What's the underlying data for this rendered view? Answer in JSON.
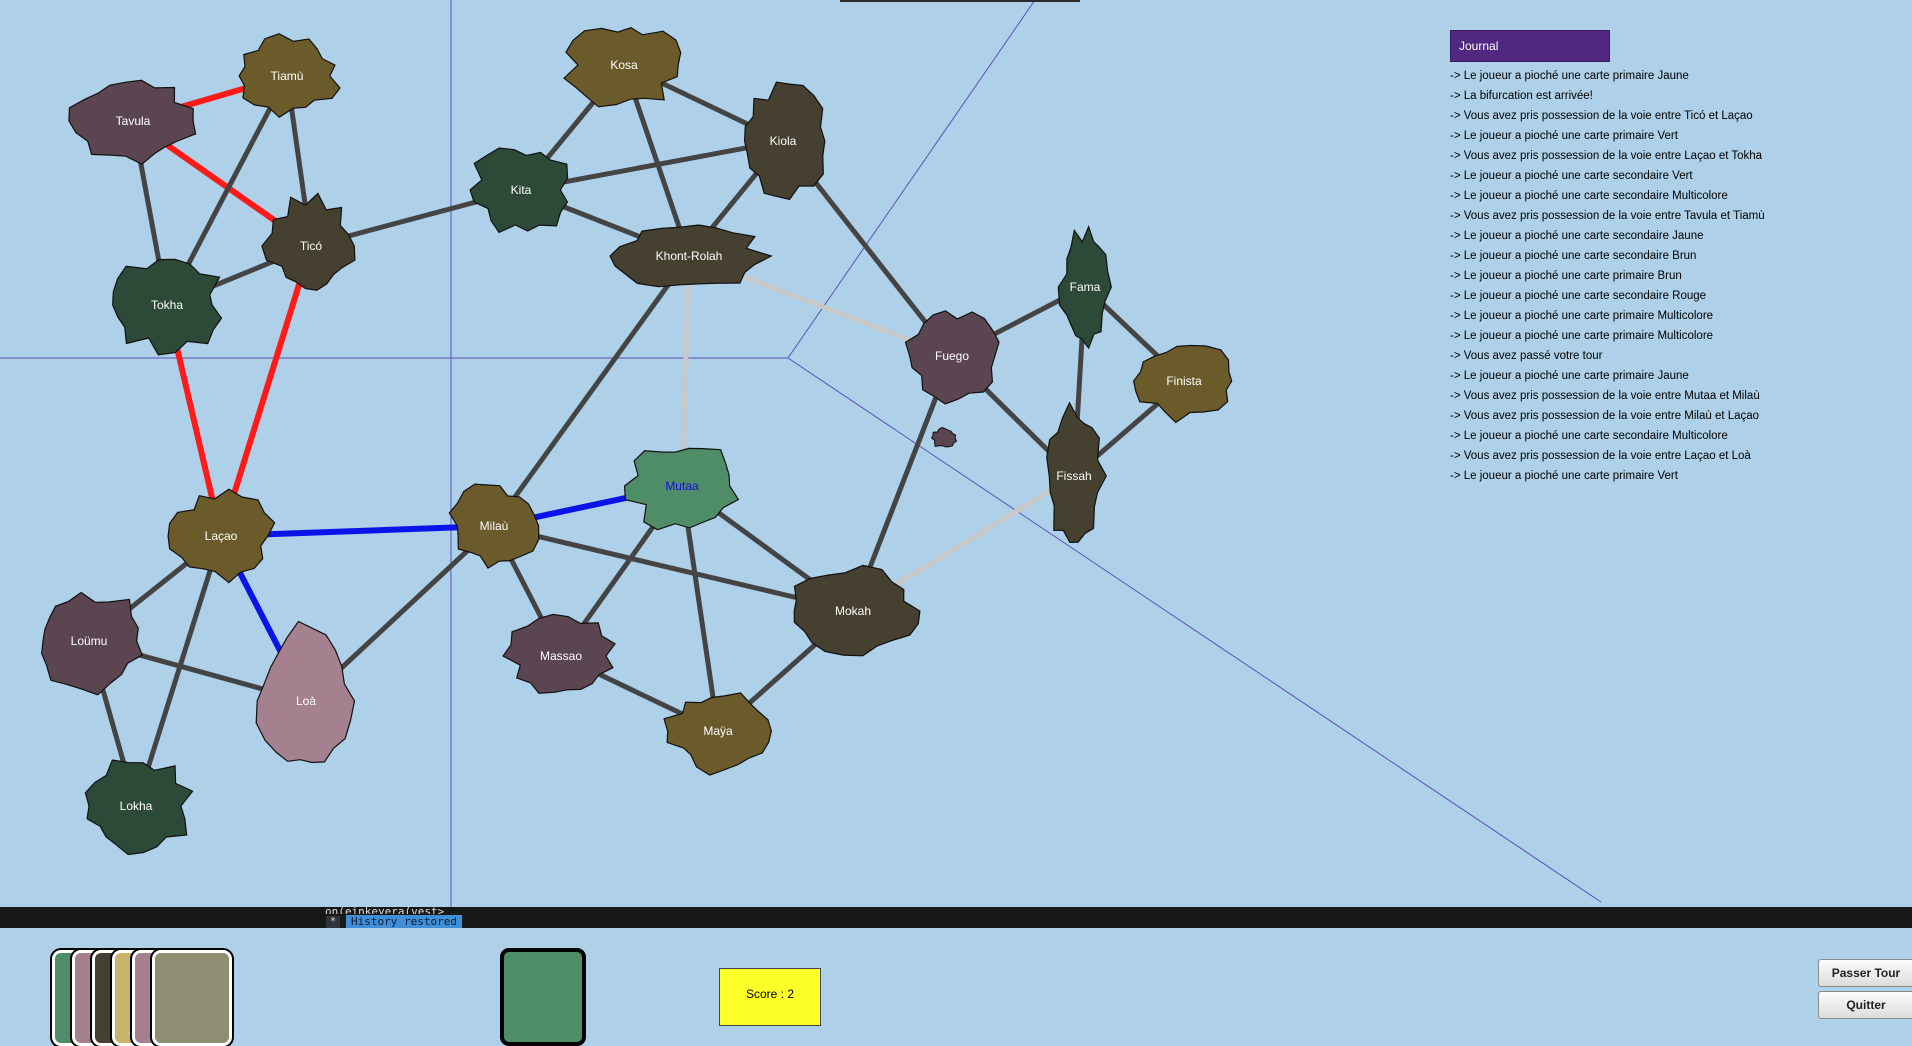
{
  "colors": {
    "sea": "#aed0e8",
    "red_route": "#ff1a1a",
    "blue_route": "#0a14e8",
    "neutral_route": "#444444",
    "grey_route": "#c8c8c8",
    "journal_header": "#51287f",
    "score_bg": "#ffff2a"
  },
  "cities": [
    {
      "id": "tavula",
      "label": "Tavula",
      "color": "#5a4550"
    },
    {
      "id": "tiamu",
      "label": "Tiamù",
      "color": "#6b5a2a"
    },
    {
      "id": "tico",
      "label": "Ticó",
      "color": "#45402f"
    },
    {
      "id": "tokha",
      "label": "Tokha",
      "color": "#2d4a38"
    },
    {
      "id": "kosa",
      "label": "Kosa",
      "color": "#6b5a2a"
    },
    {
      "id": "kita",
      "label": "Kita",
      "color": "#2d4a38"
    },
    {
      "id": "kiola",
      "label": "Kiola",
      "color": "#45402f"
    },
    {
      "id": "khont",
      "label": "Khont-Rolah",
      "color": "#45402f"
    },
    {
      "id": "fuego",
      "label": "Fuego",
      "color": "#5a4550"
    },
    {
      "id": "fama",
      "label": "Fama",
      "color": "#2d4a38"
    },
    {
      "id": "finista",
      "label": "Finista",
      "color": "#6b5a2a"
    },
    {
      "id": "fissah",
      "label": "Fissah",
      "color": "#45402f"
    },
    {
      "id": "lacao",
      "label": "Laçao",
      "color": "#6b5a2a"
    },
    {
      "id": "milau",
      "label": "Milaù",
      "color": "#6b5a2a"
    },
    {
      "id": "mutaa",
      "label": "Mutaa",
      "color": "#4f8c68",
      "selected": true
    },
    {
      "id": "mokah",
      "label": "Mokah",
      "color": "#45402f"
    },
    {
      "id": "massao",
      "label": "Massao",
      "color": "#5a4550"
    },
    {
      "id": "maya",
      "label": "Maÿa",
      "color": "#6b5a2a"
    },
    {
      "id": "loumu",
      "label": "Loümu",
      "color": "#5a4550"
    },
    {
      "id": "loa",
      "label": "Loà",
      "color": "#a5808f"
    },
    {
      "id": "lokha",
      "label": "Lokha",
      "color": "#2d4a38"
    }
  ],
  "routes": [
    {
      "a": "tavula",
      "b": "tiamu",
      "owner": "red"
    },
    {
      "a": "tavula",
      "b": "tico",
      "owner": "red"
    },
    {
      "a": "tavula",
      "b": "tokha",
      "owner": "neutral"
    },
    {
      "a": "tiamu",
      "b": "tico",
      "owner": "neutral"
    },
    {
      "a": "tiamu",
      "b": "tokha",
      "owner": "neutral"
    },
    {
      "a": "tico",
      "b": "tokha",
      "owner": "neutral"
    },
    {
      "a": "tico",
      "b": "lacao",
      "owner": "red"
    },
    {
      "a": "tokha",
      "b": "lacao",
      "owner": "red"
    },
    {
      "a": "tico",
      "b": "kita",
      "owner": "neutral"
    },
    {
      "a": "kita",
      "b": "kosa",
      "owner": "neutral"
    },
    {
      "a": "kita",
      "b": "kiola",
      "owner": "neutral"
    },
    {
      "a": "kita",
      "b": "khont",
      "owner": "neutral"
    },
    {
      "a": "kosa",
      "b": "kiola",
      "owner": "neutral"
    },
    {
      "a": "kosa",
      "b": "khont",
      "owner": "neutral"
    },
    {
      "a": "kiola",
      "b": "khont",
      "owner": "neutral"
    },
    {
      "a": "kiola",
      "b": "fuego",
      "owner": "neutral"
    },
    {
      "a": "khont",
      "b": "fuego",
      "owner": "grey"
    },
    {
      "a": "khont",
      "b": "mutaa",
      "owner": "grey"
    },
    {
      "a": "khont",
      "b": "milau",
      "owner": "neutral"
    },
    {
      "a": "fuego",
      "b": "fama",
      "owner": "neutral"
    },
    {
      "a": "fuego",
      "b": "fissah",
      "owner": "neutral"
    },
    {
      "a": "fuego",
      "b": "mokah",
      "owner": "neutral"
    },
    {
      "a": "fama",
      "b": "finista",
      "owner": "neutral"
    },
    {
      "a": "fama",
      "b": "fissah",
      "owner": "neutral"
    },
    {
      "a": "finista",
      "b": "fissah",
      "owner": "neutral"
    },
    {
      "a": "fissah",
      "b": "mokah",
      "owner": "grey"
    },
    {
      "a": "lacao",
      "b": "milau",
      "owner": "blue"
    },
    {
      "a": "lacao",
      "b": "loa",
      "owner": "blue"
    },
    {
      "a": "lacao",
      "b": "loumu",
      "owner": "neutral"
    },
    {
      "a": "lacao",
      "b": "lokha",
      "owner": "neutral"
    },
    {
      "a": "milau",
      "b": "mutaa",
      "owner": "blue"
    },
    {
      "a": "milau",
      "b": "massao",
      "owner": "neutral"
    },
    {
      "a": "milau",
      "b": "mokah",
      "owner": "neutral"
    },
    {
      "a": "milau",
      "b": "loa",
      "owner": "neutral"
    },
    {
      "a": "mutaa",
      "b": "massao",
      "owner": "neutral"
    },
    {
      "a": "mutaa",
      "b": "maya",
      "owner": "neutral"
    },
    {
      "a": "mutaa",
      "b": "mokah",
      "owner": "neutral"
    },
    {
      "a": "massao",
      "b": "maya",
      "owner": "neutral"
    },
    {
      "a": "maya",
      "b": "mokah",
      "owner": "neutral"
    },
    {
      "a": "loumu",
      "b": "loa",
      "owner": "neutral"
    },
    {
      "a": "loumu",
      "b": "lokha",
      "owner": "neutral"
    }
  ],
  "journal": {
    "title": "Journal",
    "entries": [
      "-> Le joueur a pioché une carte primaire Jaune",
      "-> La bifurcation est arrivée!",
      "-> Vous avez pris possession de la voie entre Ticó et Laçao",
      "-> Le joueur a pioché une carte primaire Vert",
      "-> Vous avez pris possession de la voie entre Laçao et Tokha",
      "-> Le joueur a pioché une carte secondaire Vert",
      "-> Le joueur a pioché une carte secondaire Multicolore",
      "-> Vous avez pris possession de la voie entre Tavula et Tiamù",
      "-> Le joueur a pioché une carte secondaire Jaune",
      "-> Le joueur a pioché une carte secondaire Brun",
      "-> Le joueur a pioché une carte primaire Brun",
      "-> Le joueur a pioché une carte secondaire Rouge",
      "-> Le joueur a pioché une carte primaire Multicolore",
      "-> Le joueur a pioché une carte primaire Multicolore",
      "-> Vous avez passé votre tour",
      "-> Le joueur a pioché une carte primaire Jaune",
      "-> Vous avez pris possession de la voie entre Mutaa et Milaù",
      "-> Vous avez pris possession de la voie entre Milaù et Laçao",
      "-> Le joueur a pioché une carte secondaire Multicolore",
      "-> Vous avez pris possession de la voie entre Laçao et Loà",
      "-> Le joueur a pioché une carte primaire Vert"
    ]
  },
  "terminal": {
    "previous_line": "on(einkeyera(vest>",
    "marker": "*",
    "status": "History restored"
  },
  "hand": [
    {
      "color": "#4f8c68"
    },
    {
      "color": "#a5808f"
    },
    {
      "color": "#45402f"
    },
    {
      "color": "#c8b46a"
    },
    {
      "color": "#a5808f"
    },
    {
      "color": "#8e8e72"
    }
  ],
  "selected_card": {
    "color": "#4f8c68"
  },
  "score": {
    "text": "Score : 2"
  },
  "buttons": {
    "pass": "Passer Tour",
    "quit": "Quitter"
  }
}
